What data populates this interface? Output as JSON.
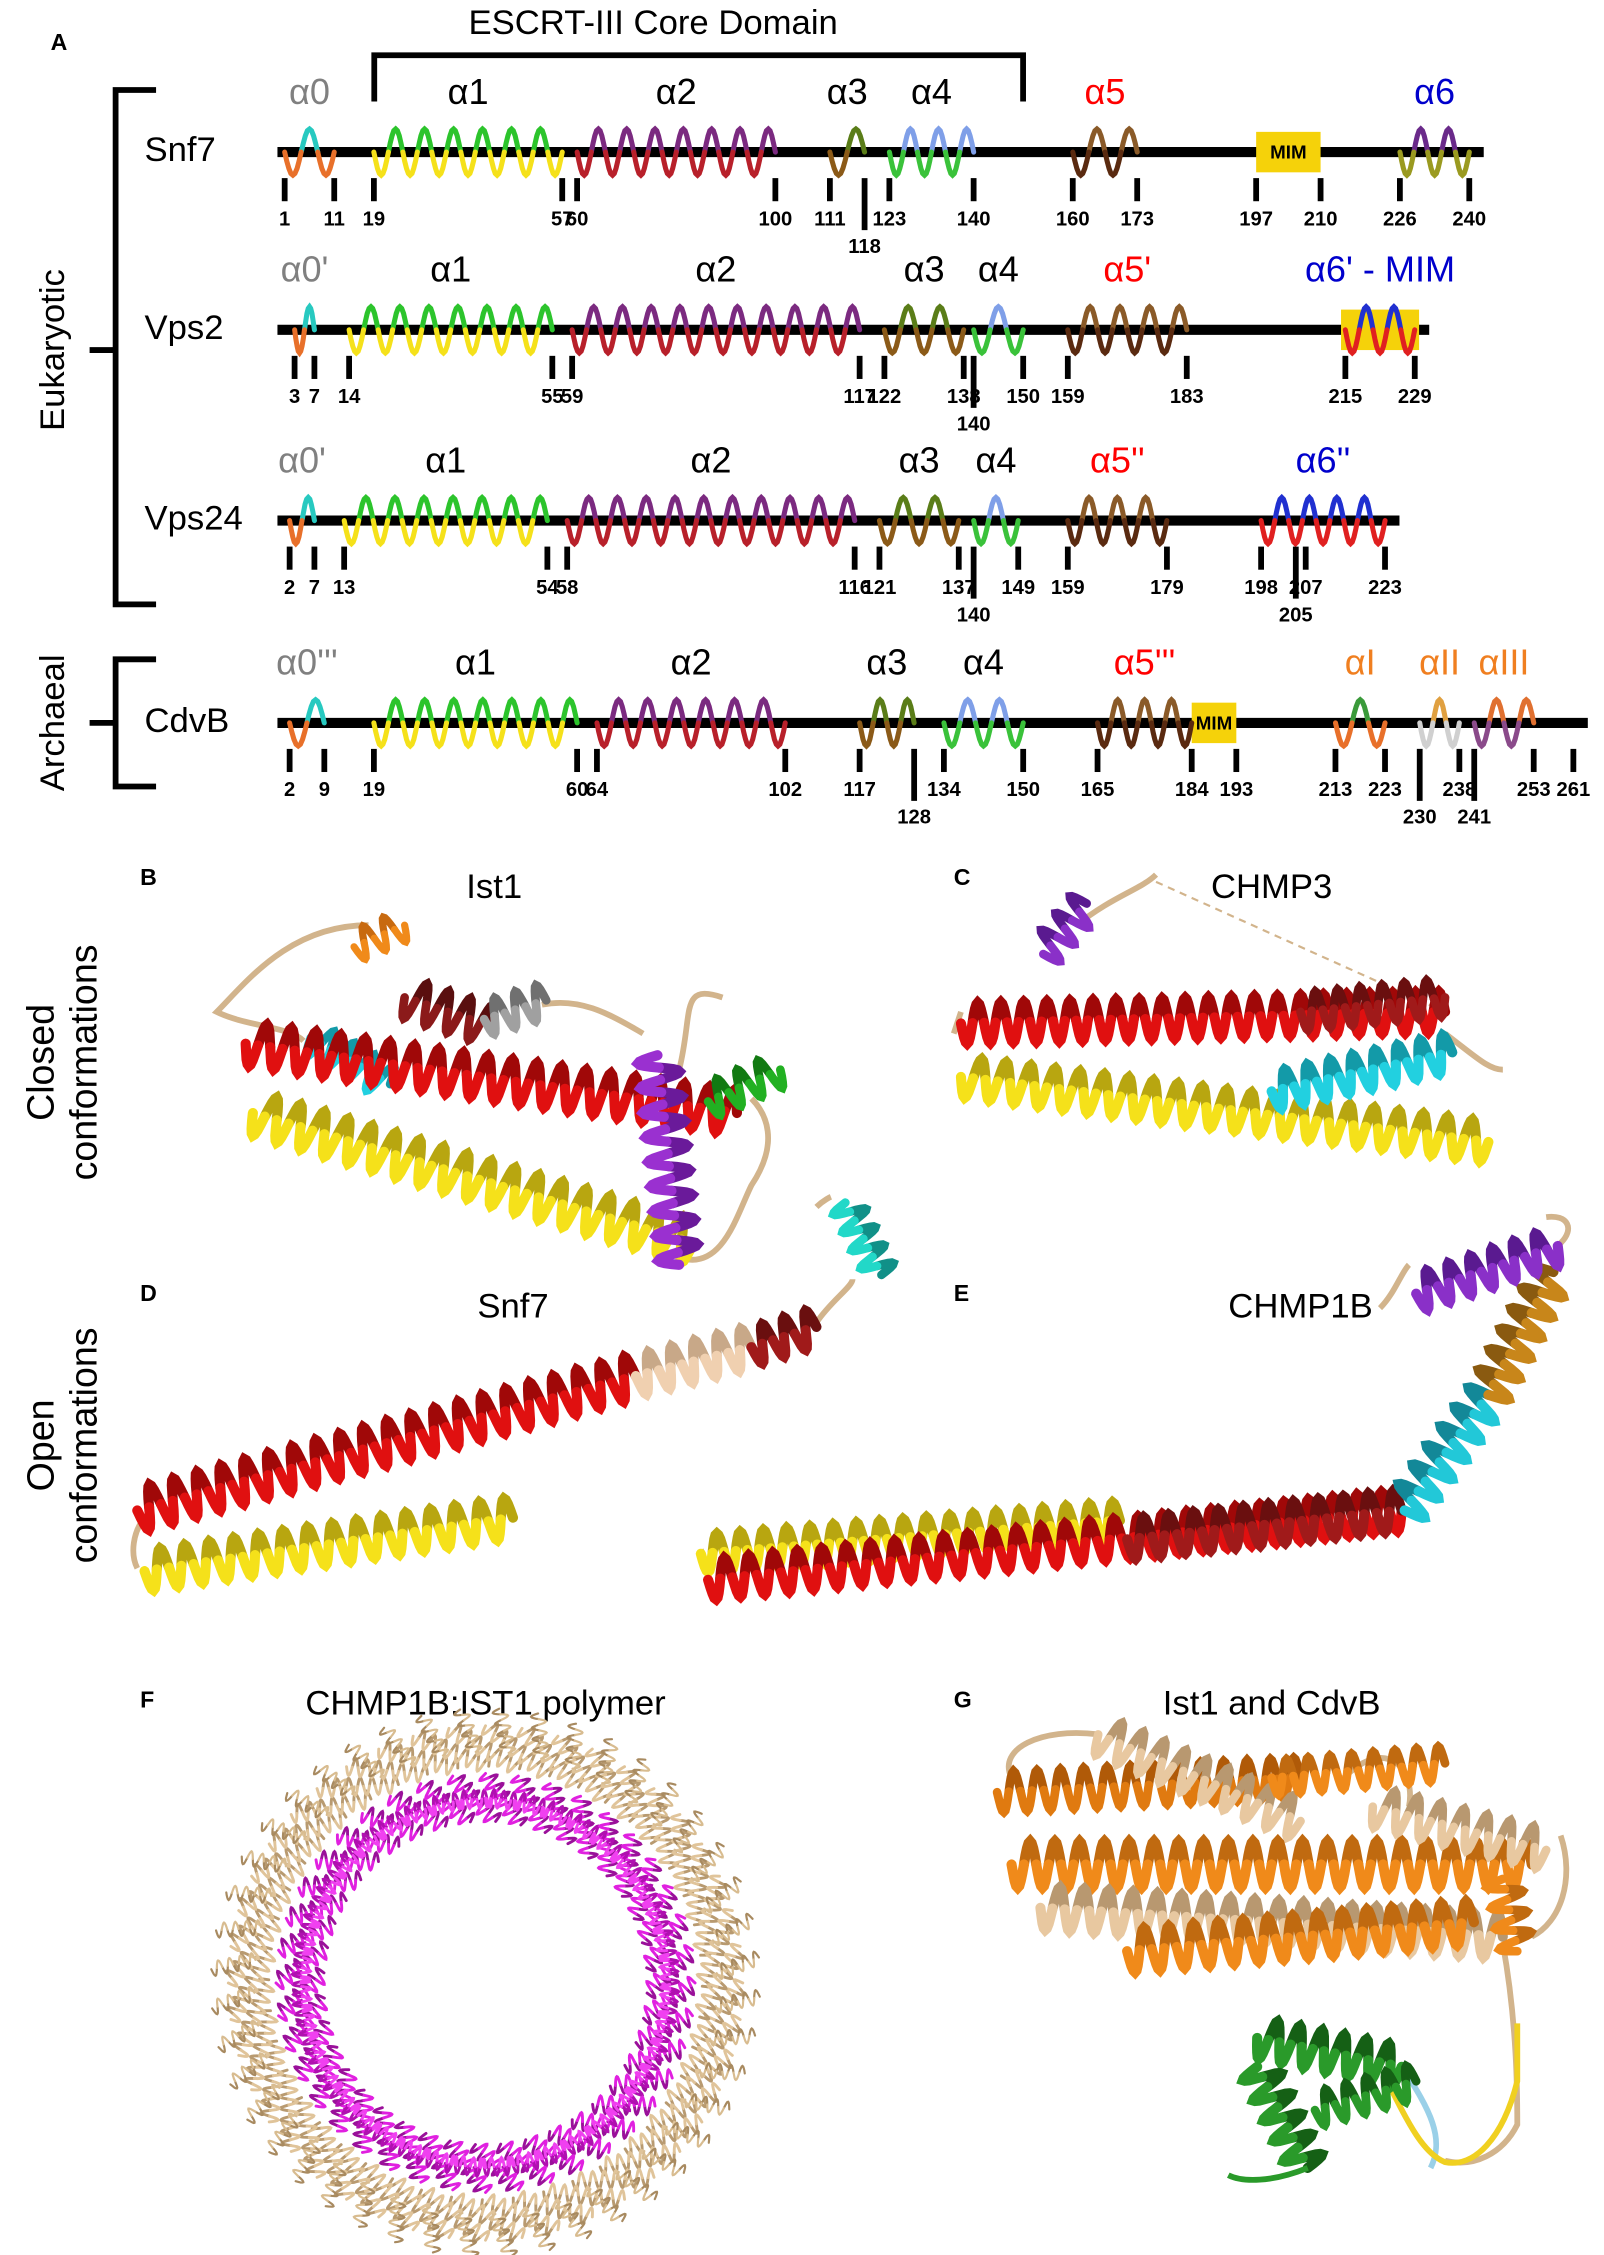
{
  "panel_a": {
    "label": "A",
    "core_domain_label": "ESCRT-III Core Domain",
    "group_labels": [
      "Eukaryotic",
      "Archaeal"
    ],
    "proteins": [
      {
        "name": "Snf7",
        "residues": [
          1,
          11,
          19,
          57,
          60,
          100,
          111,
          118,
          123,
          140,
          160,
          173,
          197,
          210,
          226,
          240
        ],
        "helices": [
          {
            "label": "α0",
            "color": "#808080"
          },
          {
            "label": "α1",
            "color": "#000000"
          },
          {
            "label": "α2",
            "color": "#000000"
          },
          {
            "label": "α3",
            "color": "#000000"
          },
          {
            "label": "α4",
            "color": "#000000"
          },
          {
            "label": "α5",
            "color": "#ff0000"
          },
          {
            "label": "α6",
            "color": "#0000cc"
          }
        ],
        "motifs": [
          "MIM"
        ]
      },
      {
        "name": "Vps2",
        "residues": [
          3,
          7,
          14,
          55,
          59,
          117,
          122,
          138,
          140,
          150,
          159,
          183,
          215,
          229
        ],
        "helices": [
          {
            "label": "α0'",
            "color": "#808080"
          },
          {
            "label": "α1",
            "color": "#000000"
          },
          {
            "label": "α2",
            "color": "#000000"
          },
          {
            "label": "α3",
            "color": "#000000"
          },
          {
            "label": "α4",
            "color": "#000000"
          },
          {
            "label": "α5'",
            "color": "#ff0000"
          },
          {
            "label": "α6' - MIM",
            "color": "#0000cc"
          }
        ],
        "motifs": []
      },
      {
        "name": "Vps24",
        "residues": [
          2,
          7,
          13,
          54,
          58,
          116,
          121,
          137,
          140,
          149,
          159,
          179,
          198,
          205,
          207,
          223
        ],
        "helices": [
          {
            "label": "α0'",
            "color": "#808080"
          },
          {
            "label": "α1",
            "color": "#000000"
          },
          {
            "label": "α2",
            "color": "#000000"
          },
          {
            "label": "α3",
            "color": "#000000"
          },
          {
            "label": "α4",
            "color": "#000000"
          },
          {
            "label": "α5''",
            "color": "#ff0000"
          },
          {
            "label": "α6''",
            "color": "#0000cc"
          }
        ],
        "motifs": []
      },
      {
        "name": "CdvB",
        "residues": [
          2,
          9,
          19,
          60,
          64,
          102,
          117,
          128,
          134,
          150,
          165,
          184,
          193,
          213,
          223,
          230,
          238,
          241,
          253,
          261
        ],
        "helices": [
          {
            "label": "α0'''",
            "color": "#808080"
          },
          {
            "label": "α1",
            "color": "#000000"
          },
          {
            "label": "α2",
            "color": "#000000"
          },
          {
            "label": "α3",
            "color": "#000000"
          },
          {
            "label": "α4",
            "color": "#000000"
          },
          {
            "label": "α5'''",
            "color": "#ff0000"
          },
          {
            "label": "αI",
            "color": "#f07f20"
          },
          {
            "label": "αII",
            "color": "#f07f20"
          },
          {
            "label": "αIII",
            "color": "#f07f20"
          }
        ],
        "motifs": [
          "MIM"
        ]
      }
    ]
  },
  "structures": [
    {
      "label": "B",
      "title": "Ist1"
    },
    {
      "label": "C",
      "title": "CHMP3"
    },
    {
      "label": "D",
      "title": "Snf7"
    },
    {
      "label": "E",
      "title": "CHMP1B"
    },
    {
      "label": "F",
      "title": "CHMP1B:IST1 polymer"
    },
    {
      "label": "G",
      "title": "Ist1 and CdvB"
    }
  ],
  "row_labels": [
    [
      "Closed",
      "conformations"
    ],
    [
      "Open",
      "conformations"
    ]
  ]
}
